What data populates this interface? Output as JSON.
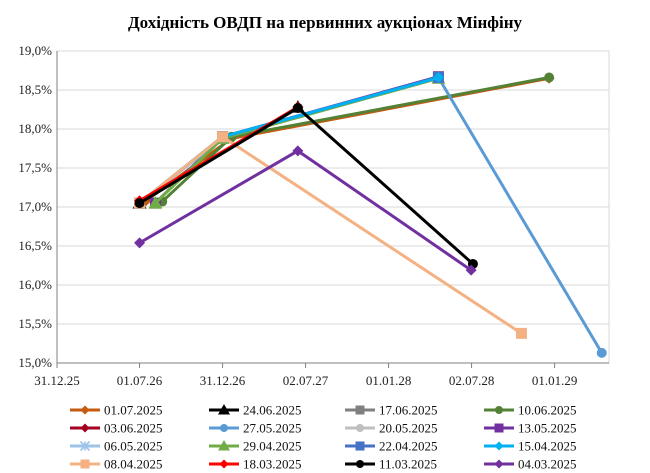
{
  "chart_data": {
    "type": "line",
    "title": "Дохідність ОВДП на первинних аукціонах Мінфіну",
    "xlabel": "",
    "ylabel": "",
    "x_ticks": [
      "31.12.25",
      "01.07.26",
      "31.12.26",
      "02.07.27",
      "01.01.28",
      "02.07.28",
      "01.01.29"
    ],
    "x_tick_dates": [
      "2025-12-31",
      "2026-07-01",
      "2026-12-31",
      "2027-07-02",
      "2028-01-01",
      "2028-07-02",
      "2029-01-01"
    ],
    "xlim": [
      "2025-12-31",
      "2029-05-01"
    ],
    "y_ticks": [
      "19,0%",
      "18,5%",
      "18,0%",
      "17,5%",
      "17,0%",
      "16,5%",
      "16,0%",
      "15,5%",
      "15,0%"
    ],
    "ylim": [
      15.0,
      19.0
    ],
    "grid": "horizontal",
    "legend_position": "bottom",
    "series": [
      {
        "name": "01.07.2025",
        "color": "#c55a11",
        "marker": "diamond",
        "points": [
          {
            "x": "2026-07-15",
            "y": 17.08
          },
          {
            "x": "2027-01-20",
            "y": 17.88
          },
          {
            "x": "2028-12-20",
            "y": 18.65
          }
        ]
      },
      {
        "name": "24.06.2025",
        "color": "#000000",
        "marker": "triangle",
        "points": [
          {
            "x": "2026-07-01",
            "y": 17.05
          },
          {
            "x": "2027-06-15",
            "y": 18.28
          }
        ]
      },
      {
        "name": "17.06.2025",
        "color": "#7f7f7f",
        "marker": "square",
        "points": [
          {
            "x": "2026-07-01",
            "y": 17.05
          },
          {
            "x": "2026-12-31",
            "y": 17.9
          },
          {
            "x": "2028-04-20",
            "y": 18.66
          }
        ]
      },
      {
        "name": "10.06.2025",
        "color": "#538135",
        "marker": "circle",
        "points": [
          {
            "x": "2026-08-20",
            "y": 17.07
          },
          {
            "x": "2027-01-20",
            "y": 17.9
          },
          {
            "x": "2028-12-20",
            "y": 18.66
          }
        ]
      },
      {
        "name": "03.06.2025",
        "color": "#a50021",
        "marker": "diamond",
        "points": [
          {
            "x": "2026-07-01",
            "y": 17.07
          },
          {
            "x": "2027-06-15",
            "y": 18.28
          }
        ]
      },
      {
        "name": "27.05.2025",
        "color": "#5b9bd5",
        "marker": "circle",
        "points": [
          {
            "x": "2028-04-20",
            "y": 18.66
          },
          {
            "x": "2029-04-15",
            "y": 15.13
          }
        ]
      },
      {
        "name": "20.05.2025",
        "color": "#bfbfbf",
        "marker": "circle",
        "points": [
          {
            "x": "2026-07-01",
            "y": 17.05
          },
          {
            "x": "2026-12-31",
            "y": 17.9
          }
        ]
      },
      {
        "name": "13.05.2025",
        "color": "#7030a0",
        "marker": "square",
        "points": [
          {
            "x": "2026-08-05",
            "y": 17.05
          },
          {
            "x": "2026-12-31",
            "y": 17.9
          },
          {
            "x": "2028-04-20",
            "y": 18.67
          }
        ]
      },
      {
        "name": "06.05.2025",
        "color": "#9dc3e6",
        "marker": "cross",
        "points": [
          {
            "x": "2026-07-01",
            "y": 17.05
          },
          {
            "x": "2026-12-31",
            "y": 17.88
          }
        ]
      },
      {
        "name": "29.04.2025",
        "color": "#70ad47",
        "marker": "triangle",
        "points": [
          {
            "x": "2026-08-05",
            "y": 17.05
          },
          {
            "x": "2026-12-31",
            "y": 17.88
          },
          {
            "x": "2028-04-20",
            "y": 18.65
          }
        ]
      },
      {
        "name": "22.04.2025",
        "color": "#4472c4",
        "marker": "square",
        "points": [
          {
            "x": "2026-07-01",
            "y": 17.05
          },
          {
            "x": "2026-12-31",
            "y": 17.9
          },
          {
            "x": "2028-04-20",
            "y": 18.66
          }
        ]
      },
      {
        "name": "15.04.2025",
        "color": "#00b0f0",
        "marker": "diamond",
        "points": [
          {
            "x": "2026-07-01",
            "y": 17.05
          },
          {
            "x": "2026-12-31",
            "y": 17.9
          },
          {
            "x": "2028-04-20",
            "y": 18.66
          }
        ]
      },
      {
        "name": "08.04.2025",
        "color": "#f4b183",
        "marker": "square",
        "points": [
          {
            "x": "2026-07-01",
            "y": 17.05
          },
          {
            "x": "2026-12-31",
            "y": 17.9
          },
          {
            "x": "2028-10-20",
            "y": 15.38
          }
        ]
      },
      {
        "name": "18.03.2025",
        "color": "#ff0000",
        "marker": "diamond",
        "points": [
          {
            "x": "2026-07-01",
            "y": 17.08
          },
          {
            "x": "2027-06-15",
            "y": 18.28
          }
        ]
      },
      {
        "name": "11.03.2025",
        "color": "#000000",
        "marker": "circle",
        "points": [
          {
            "x": "2026-07-01",
            "y": 17.05
          },
          {
            "x": "2027-06-15",
            "y": 18.27
          },
          {
            "x": "2028-07-05",
            "y": 16.27
          }
        ]
      },
      {
        "name": "04.03.2025",
        "color": "#7030a0",
        "marker": "diamond",
        "points": [
          {
            "x": "2026-07-01",
            "y": 16.54
          },
          {
            "x": "2027-06-15",
            "y": 17.72
          },
          {
            "x": "2028-07-01",
            "y": 16.19
          }
        ]
      }
    ]
  }
}
